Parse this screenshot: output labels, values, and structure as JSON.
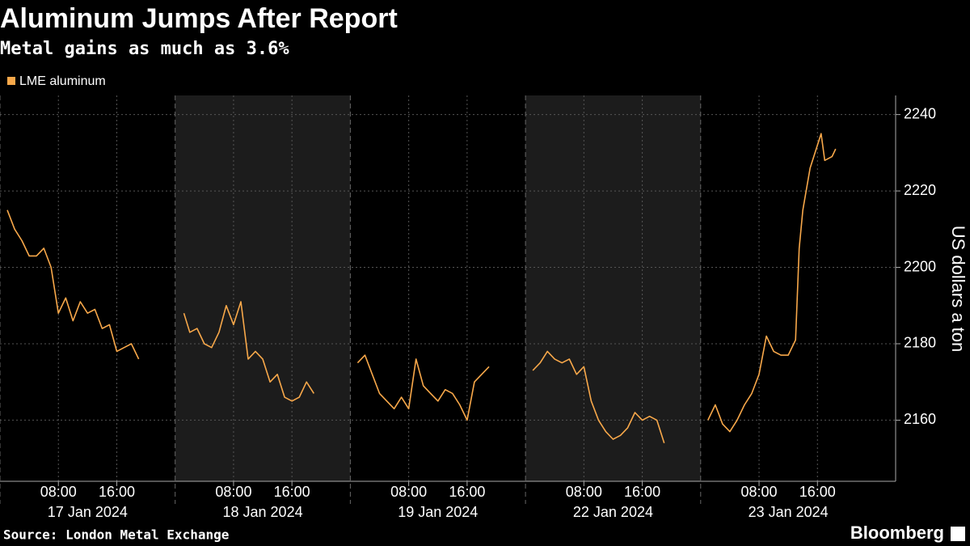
{
  "chart_data": {
    "type": "line",
    "title": "Aluminum Jumps After Report",
    "subtitle": "Metal gains as much as 3.6%",
    "series_name": "LME aluminum",
    "color": "#f8a84a",
    "ylabel": "US dollars a ton",
    "source": "Source: London Metal Exchange",
    "brand": "Bloomberg",
    "grid": true,
    "ylim": [
      2144,
      2245
    ],
    "yticks": [
      2160,
      2180,
      2200,
      2220,
      2240
    ],
    "xlim": [
      0,
      24
    ],
    "xticks": [
      {
        "value": 8,
        "label": "08:00"
      },
      {
        "value": 16,
        "label": "16:00"
      }
    ],
    "panels": [
      {
        "label": "17 Jan 2024",
        "shaded": false,
        "x": [
          1,
          2,
          3,
          4,
          5,
          6,
          7,
          8,
          9,
          10,
          11,
          12,
          13,
          14,
          15,
          16,
          17,
          18,
          19
        ],
        "values": [
          2215,
          2210,
          2207,
          2203,
          2203,
          2205,
          2200,
          2188,
          2192,
          2186,
          2191,
          2188,
          2189,
          2184,
          2185,
          2178,
          2179,
          2180,
          2176
        ]
      },
      {
        "label": "18 Jan 2024",
        "shaded": true,
        "x": [
          1.2,
          2,
          3,
          4,
          5,
          6,
          7,
          8,
          9,
          10,
          11,
          12,
          13,
          14,
          15,
          16,
          17,
          18,
          19
        ],
        "values": [
          2188,
          2183,
          2184,
          2180,
          2179,
          2183,
          2190,
          2185,
          2191,
          2176,
          2178,
          2176,
          2170,
          2172,
          2166,
          2165,
          2166,
          2170,
          2167
        ]
      },
      {
        "label": "19 Jan 2024",
        "shaded": false,
        "x": [
          1,
          2,
          3,
          4,
          5,
          6,
          7,
          8,
          9,
          10,
          11,
          12,
          13,
          14,
          15,
          16,
          17,
          18,
          19
        ],
        "values": [
          2175,
          2177,
          2172,
          2167,
          2165,
          2163,
          2166,
          2163,
          2176,
          2169,
          2167,
          2165,
          2168,
          2167,
          2164,
          2160,
          2170,
          2172,
          2174
        ]
      },
      {
        "label": "22 Jan 2024",
        "shaded": true,
        "x": [
          1,
          2,
          3,
          4,
          5,
          6,
          7,
          8,
          9,
          10,
          11,
          12,
          13,
          14,
          15,
          16,
          17,
          18,
          19
        ],
        "values": [
          2173,
          2175,
          2178,
          2176,
          2175,
          2176,
          2172,
          2174,
          2165,
          2160,
          2157,
          2155,
          2156,
          2158,
          2162,
          2160,
          2161,
          2160,
          2154
        ]
      },
      {
        "label": "23 Jan 2024",
        "shaded": false,
        "x": [
          1,
          2,
          3,
          4,
          5,
          6,
          7,
          8,
          9,
          10,
          11,
          12,
          13,
          13.5,
          14,
          15,
          16,
          16.5,
          17,
          18,
          18.5
        ],
        "values": [
          2160,
          2164,
          2159,
          2157,
          2160,
          2164,
          2167,
          2172,
          2182,
          2178,
          2177,
          2177,
          2181,
          2205,
          2215,
          2226,
          2232,
          2235,
          2228,
          2229,
          2231
        ]
      }
    ]
  }
}
